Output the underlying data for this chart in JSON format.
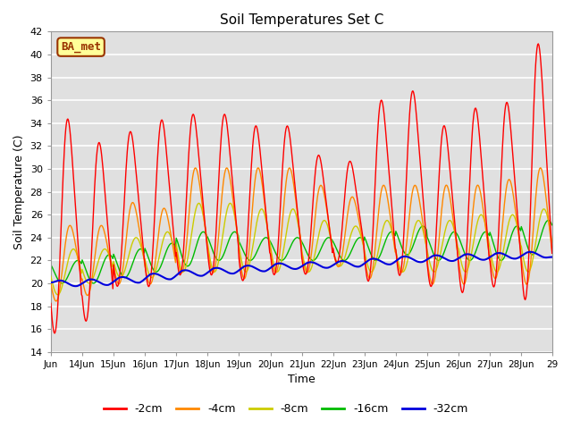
{
  "title": "Soil Temperatures Set C",
  "xlabel": "Time",
  "ylabel": "Soil Temperature (C)",
  "ylim": [
    14,
    42
  ],
  "yticks": [
    14,
    16,
    18,
    20,
    22,
    24,
    26,
    28,
    30,
    32,
    34,
    36,
    38,
    40,
    42
  ],
  "colors": {
    "-2cm": "#ff0000",
    "-4cm": "#ff8800",
    "-8cm": "#cccc00",
    "-16cm": "#00bb00",
    "-32cm": "#0000dd"
  },
  "legend_labels": [
    "-2cm",
    "-4cm",
    "-8cm",
    "-16cm",
    "-32cm"
  ],
  "watermark_text": "BA_met",
  "watermark_bg": "#ffff99",
  "watermark_border": "#993300",
  "plot_bg_color": "#e0e0e0",
  "grid_color": "#ffffff",
  "n_days": 16,
  "start_day": 13,
  "pts_per_day": 48
}
